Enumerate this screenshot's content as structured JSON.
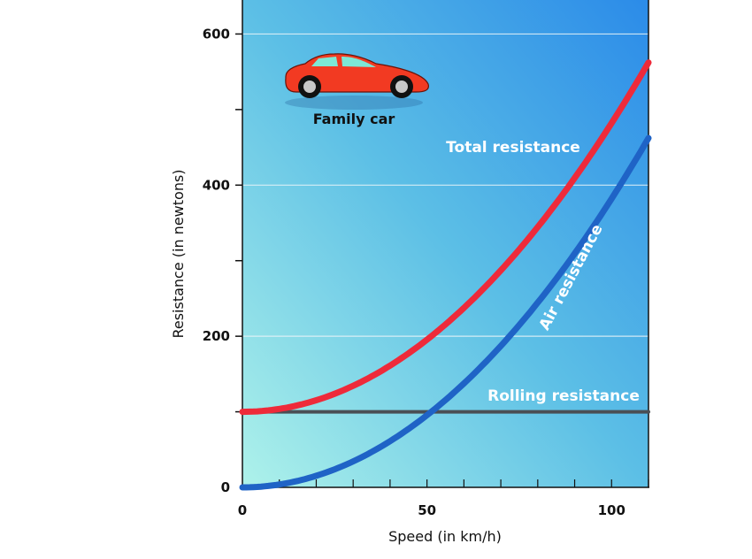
{
  "chart_data": {
    "type": "line",
    "title": "",
    "xlabel": "Speed (in km/h)",
    "ylabel": "Resistance (in newtons)",
    "xlim": [
      0,
      110
    ],
    "ylim": [
      0,
      645
    ],
    "xticks": [
      0,
      50,
      100
    ],
    "yticks": [
      0,
      200,
      400,
      600
    ],
    "grid": true,
    "annotation": "Family car",
    "series": [
      {
        "name": "Total resistance",
        "color": "#ee2a3a",
        "x": [
          0,
          10,
          20,
          30,
          40,
          50,
          60,
          70,
          80,
          90,
          100,
          110
        ],
        "y": [
          100,
          104,
          115,
          134,
          161,
          195,
          237,
          286,
          343,
          408,
          480,
          560
        ]
      },
      {
        "name": "Air resistance",
        "color": "#1f63c6",
        "x": [
          0,
          10,
          20,
          30,
          40,
          50,
          60,
          70,
          80,
          90,
          100,
          110
        ],
        "y": [
          0,
          4,
          15,
          34,
          61,
          95,
          137,
          186,
          243,
          308,
          380,
          462
        ]
      },
      {
        "name": "Rolling resistance",
        "color": "#4a4f55",
        "x": [
          0,
          110
        ],
        "y": [
          100,
          100
        ]
      }
    ]
  }
}
